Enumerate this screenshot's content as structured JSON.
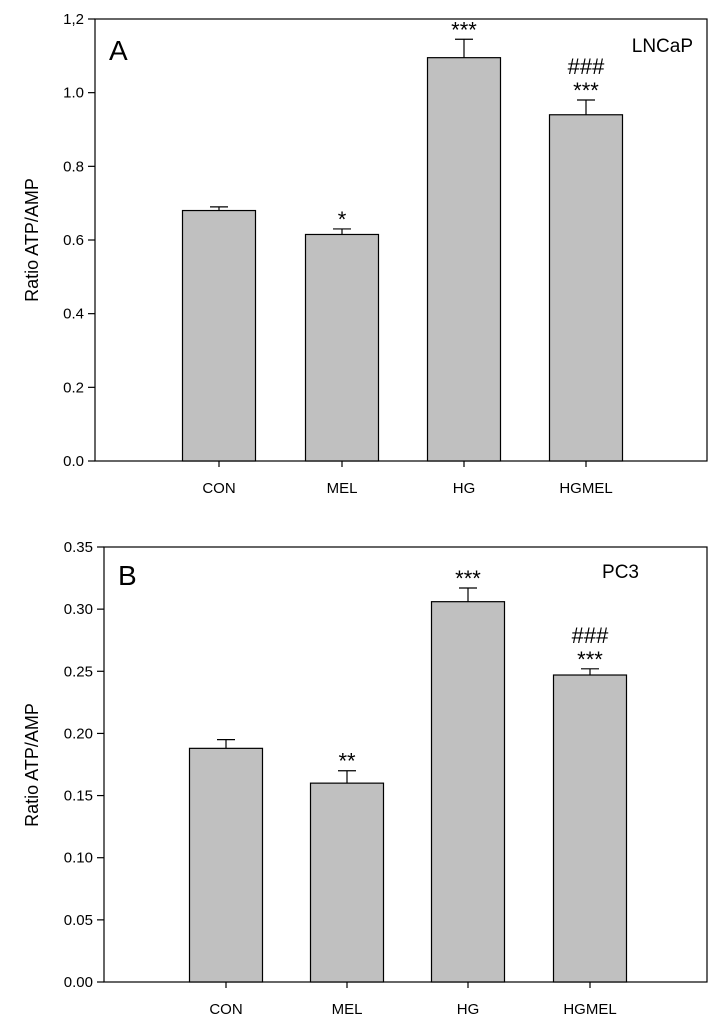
{
  "chart_data": [
    {
      "type": "bar",
      "panel": "A",
      "cell_line": "LNCaP",
      "ylabel": "Ratio ATP/AMP",
      "xlabel": "",
      "categories": [
        "CON",
        "MEL",
        "HG",
        "HGMEL"
      ],
      "values": [
        0.68,
        0.615,
        1.095,
        0.94
      ],
      "errors": [
        0.01,
        0.015,
        0.05,
        0.04
      ],
      "ylim": [
        0,
        1.2
      ],
      "yticks": [
        0.0,
        0.2,
        0.4,
        0.6,
        0.8,
        1.0,
        1.2
      ],
      "ytick_labels": [
        "0.0",
        "0.2",
        "0.4",
        "0.6",
        "0.8",
        "1.0",
        "1,2"
      ],
      "significance_star": [
        "",
        "*",
        "***",
        "***"
      ],
      "significance_hash": [
        "",
        "",
        "",
        "###"
      ]
    },
    {
      "type": "bar",
      "panel": "B",
      "cell_line": "PC3",
      "ylabel": "Ratio ATP/AMP",
      "xlabel": "",
      "categories": [
        "CON",
        "MEL",
        "HG",
        "HGMEL"
      ],
      "values": [
        0.188,
        0.16,
        0.306,
        0.247
      ],
      "errors": [
        0.007,
        0.01,
        0.011,
        0.005
      ],
      "ylim": [
        0,
        0.35
      ],
      "yticks": [
        0.0,
        0.05,
        0.1,
        0.15,
        0.2,
        0.25,
        0.3,
        0.35
      ],
      "ytick_labels": [
        "0.00",
        "0.05",
        "0.10",
        "0.15",
        "0.20",
        "0.25",
        "0.30",
        "0.35"
      ],
      "significance_star": [
        "",
        "**",
        "***",
        "***"
      ],
      "significance_hash": [
        "",
        "",
        "",
        "###"
      ]
    }
  ],
  "colors": {
    "bar_fill": "#c0c0c0",
    "stroke": "#000000",
    "background": "#ffffff"
  }
}
